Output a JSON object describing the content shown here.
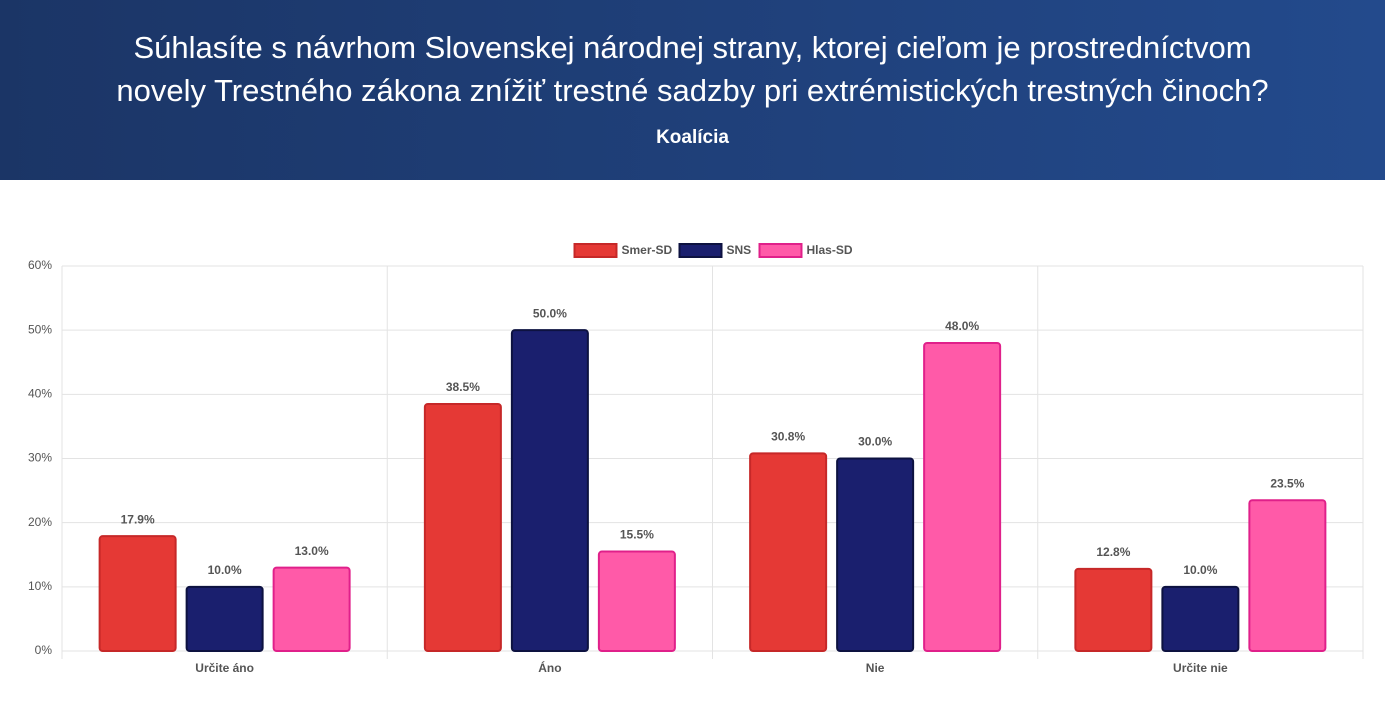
{
  "chart_data": {
    "type": "bar",
    "title": [
      "Súhlasíte s návrhom Slovenskej národnej strany, ktorej cieľom je prostredníctvom",
      "novely Trestného zákona znížiť trestné sadzby pri extrémistických trestných činoch?"
    ],
    "subtitle": "Koalícia",
    "categories": [
      "Určite áno",
      "Áno",
      "Nie",
      "Určite nie"
    ],
    "series": [
      {
        "name": "Smer-SD",
        "color": "#e53935",
        "border": "#c62828",
        "values": [
          17.9,
          38.5,
          30.8,
          12.8
        ],
        "value_labels": [
          "17.9%",
          "38.5%",
          "30.8%",
          "12.8%"
        ]
      },
      {
        "name": "SNS",
        "color": "#1a1f6e",
        "border": "#0d1240",
        "values": [
          10.0,
          50.0,
          30.0,
          10.0
        ],
        "value_labels": [
          "10.0%",
          "50.0%",
          "30.0%",
          "10.0%"
        ]
      },
      {
        "name": "Hlas-SD",
        "color": "#ff5aa8",
        "border": "#e0208a",
        "values": [
          13.0,
          15.5,
          48.0,
          23.5
        ],
        "value_labels": [
          "13.0%",
          "15.5%",
          "48.0%",
          "23.5%"
        ]
      }
    ],
    "ylim": [
      0,
      60
    ],
    "yticks": [
      {
        "value": 0,
        "label": "0%"
      },
      {
        "value": 10,
        "label": "10%"
      },
      {
        "value": 20,
        "label": "20%"
      },
      {
        "value": 30,
        "label": "30%"
      },
      {
        "value": 40,
        "label": "40%"
      },
      {
        "value": 50,
        "label": "50%"
      },
      {
        "value": 60,
        "label": "60%"
      }
    ],
    "grid": true,
    "legend": "top"
  }
}
